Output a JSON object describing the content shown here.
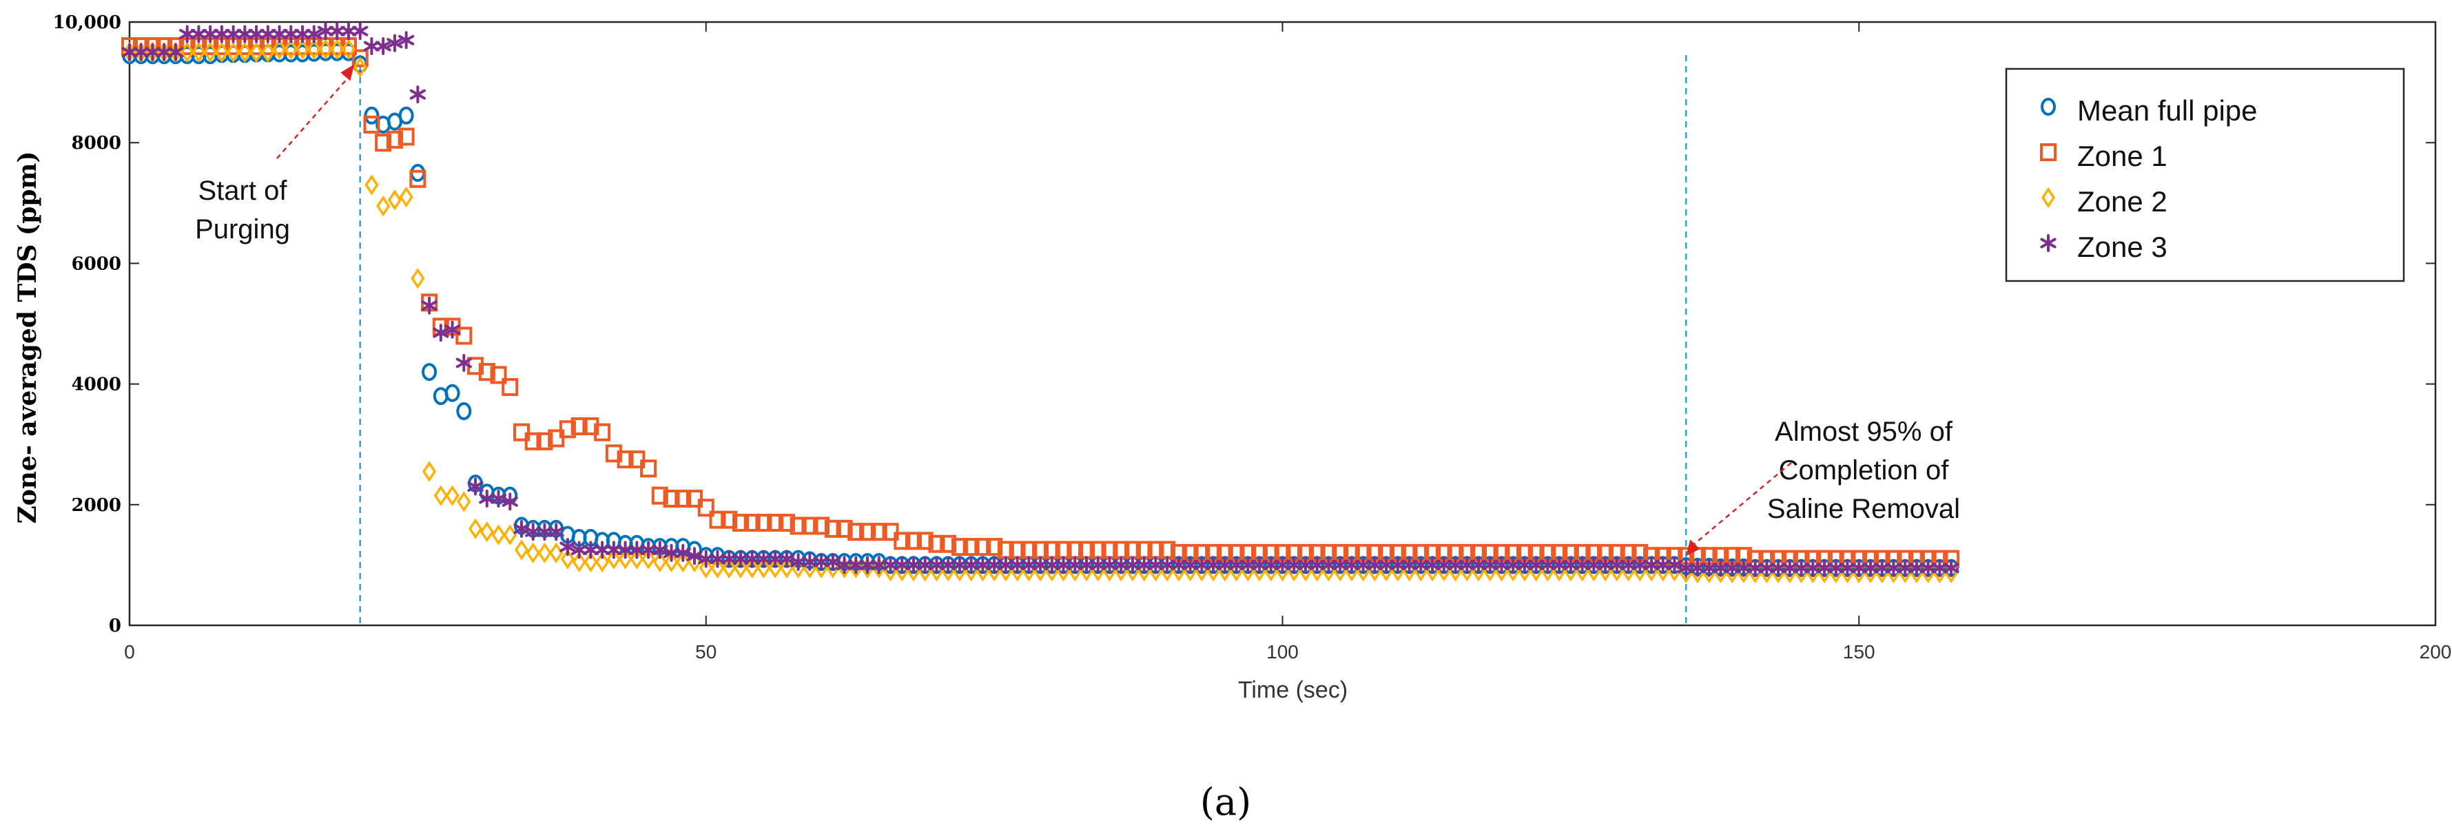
{
  "chart_data": {
    "type": "scatter",
    "title": "",
    "xlabel": "Time (sec)",
    "ylabel": "Zone- averaged TDS (ppm)",
    "xlim": [
      0,
      200
    ],
    "ylim": [
      0,
      10000
    ],
    "xticks": [
      0,
      50,
      100,
      150,
      200
    ],
    "xtick_labels": [
      "0",
      "50",
      "100",
      "150",
      "200"
    ],
    "yticks": [
      0,
      2000,
      4000,
      6000,
      8000,
      10000
    ],
    "ytick_labels": [
      "0",
      "2000",
      "4000",
      "6000",
      "8000",
      "10,000"
    ],
    "grid": false,
    "legend_position": "top-right",
    "vlines": [
      20,
      135
    ],
    "annotations": [
      {
        "lines": [
          "Start of",
          "Purging"
        ],
        "x": 19.5,
        "y": 9300
      },
      {
        "lines": [
          "Almost 95% of",
          "Completion of",
          "Saline Removal"
        ],
        "x": 135,
        "y": 1150
      }
    ],
    "caption": "(a)",
    "x": [
      0,
      1,
      2,
      3,
      4,
      5,
      6,
      7,
      8,
      9,
      10,
      11,
      12,
      13,
      14,
      15,
      16,
      17,
      18,
      19,
      20,
      21,
      22,
      23,
      24,
      25,
      26,
      27,
      28,
      29,
      30,
      31,
      32,
      33,
      34,
      35,
      36,
      37,
      38,
      39,
      40,
      41,
      42,
      43,
      44,
      45,
      46,
      47,
      48,
      49,
      50,
      51,
      52,
      53,
      54,
      55,
      56,
      57,
      58,
      59,
      60,
      61,
      62,
      63,
      64,
      65,
      66,
      67,
      68,
      69,
      70,
      71,
      72,
      73,
      74,
      75,
      76,
      77,
      78,
      79,
      80,
      81,
      82,
      83,
      84,
      85,
      86,
      87,
      88,
      89,
      90,
      91,
      92,
      93,
      94,
      95,
      96,
      97,
      98,
      99,
      100,
      101,
      102,
      103,
      104,
      105,
      106,
      107,
      108,
      109,
      110,
      111,
      112,
      113,
      114,
      115,
      116,
      117,
      118,
      119,
      120,
      121,
      122,
      123,
      124,
      125,
      126,
      127,
      128,
      129,
      130,
      131,
      132,
      133,
      134,
      135,
      136,
      137,
      138,
      139,
      140,
      141,
      142,
      143,
      144,
      145,
      146,
      147,
      148,
      149,
      150,
      151,
      152,
      153,
      154,
      155,
      156,
      157,
      158
    ],
    "series": [
      {
        "name": "Mean full pipe",
        "marker": "circle",
        "color": "#0072BD",
        "values": [
          9450,
          9450,
          9450,
          9450,
          9450,
          9450,
          9450,
          9450,
          9470,
          9470,
          9470,
          9480,
          9480,
          9480,
          9480,
          9480,
          9490,
          9500,
          9500,
          9500,
          9300,
          8450,
          8300,
          8350,
          8450,
          7500,
          4200,
          3800,
          3850,
          3550,
          2350,
          2200,
          2150,
          2150,
          1650,
          1600,
          1600,
          1600,
          1500,
          1450,
          1450,
          1400,
          1400,
          1350,
          1350,
          1300,
          1300,
          1300,
          1300,
          1250,
          1150,
          1150,
          1100,
          1100,
          1100,
          1100,
          1100,
          1100,
          1100,
          1080,
          1050,
          1050,
          1050,
          1050,
          1050,
          1050,
          1000,
          1000,
          1000,
          1000,
          1000,
          1000,
          1000,
          1000,
          1000,
          1000,
          1000,
          1000,
          1000,
          1000,
          1000,
          1000,
          1000,
          1000,
          1000,
          1000,
          1000,
          1000,
          1000,
          1000,
          1000,
          1000,
          1000,
          1000,
          1000,
          1000,
          1000,
          1000,
          1000,
          1000,
          1000,
          1000,
          1000,
          1000,
          1000,
          1000,
          1000,
          1000,
          1000,
          1000,
          1000,
          1000,
          1000,
          1000,
          1000,
          1000,
          1000,
          1000,
          1000,
          1000,
          1000,
          1000,
          1000,
          1000,
          1000,
          1000,
          1000,
          1000,
          1000,
          1000,
          1000,
          1000,
          1000,
          1000,
          1000,
          980,
          970,
          970,
          960,
          960,
          960,
          950,
          950,
          950,
          950,
          950,
          950,
          950,
          950,
          950,
          950,
          950,
          950,
          950,
          950,
          950,
          950,
          950,
          950
        ]
      },
      {
        "name": "Zone 1",
        "marker": "square",
        "color": "#EE5A24",
        "values": [
          9600,
          9600,
          9600,
          9600,
          9600,
          9600,
          9600,
          9600,
          9600,
          9600,
          9600,
          9600,
          9600,
          9600,
          9600,
          9600,
          9600,
          9600,
          9600,
          9600,
          9400,
          8300,
          8000,
          8050,
          8100,
          7400,
          5350,
          4950,
          4950,
          4800,
          4300,
          4200,
          4150,
          3950,
          3200,
          3050,
          3050,
          3100,
          3250,
          3300,
          3300,
          3200,
          2850,
          2750,
          2750,
          2600,
          2150,
          2100,
          2100,
          2100,
          1950,
          1750,
          1750,
          1700,
          1700,
          1700,
          1700,
          1700,
          1650,
          1650,
          1650,
          1600,
          1600,
          1550,
          1550,
          1550,
          1550,
          1400,
          1400,
          1400,
          1350,
          1350,
          1300,
          1300,
          1300,
          1300,
          1250,
          1250,
          1250,
          1250,
          1250,
          1250,
          1250,
          1250,
          1250,
          1250,
          1250,
          1250,
          1250,
          1250,
          1250,
          1200,
          1200,
          1200,
          1200,
          1200,
          1200,
          1200,
          1200,
          1200,
          1200,
          1200,
          1200,
          1200,
          1200,
          1200,
          1200,
          1200,
          1200,
          1200,
          1200,
          1200,
          1200,
          1200,
          1200,
          1200,
          1200,
          1200,
          1200,
          1200,
          1200,
          1200,
          1200,
          1200,
          1200,
          1200,
          1200,
          1200,
          1200,
          1200,
          1200,
          1200,
          1150,
          1150,
          1150,
          1150,
          1150,
          1150,
          1150,
          1150,
          1150,
          1100,
          1100,
          1100,
          1100,
          1100,
          1100,
          1100,
          1100,
          1100,
          1100,
          1100,
          1100,
          1100,
          1100,
          1100,
          1100,
          1100,
          1100
        ]
      },
      {
        "name": "Zone 2",
        "marker": "diamond",
        "color": "#FFB000",
        "values": [
          9500,
          9500,
          9500,
          9500,
          9500,
          9500,
          9500,
          9500,
          9500,
          9500,
          9500,
          9500,
          9500,
          9550,
          9550,
          9550,
          9550,
          9550,
          9550,
          9550,
          9250,
          7300,
          6950,
          7050,
          7100,
          5750,
          2550,
          2150,
          2150,
          2050,
          1600,
          1550,
          1500,
          1500,
          1250,
          1200,
          1200,
          1200,
          1100,
          1050,
          1050,
          1050,
          1100,
          1100,
          1100,
          1100,
          1050,
          1050,
          1050,
          1050,
          950,
          950,
          950,
          950,
          950,
          950,
          950,
          950,
          950,
          950,
          950,
          950,
          950,
          950,
          950,
          950,
          900,
          900,
          900,
          900,
          900,
          900,
          900,
          900,
          900,
          900,
          900,
          900,
          900,
          900,
          900,
          900,
          900,
          900,
          900,
          900,
          900,
          900,
          900,
          900,
          900,
          900,
          900,
          900,
          900,
          900,
          900,
          900,
          900,
          900,
          900,
          900,
          900,
          900,
          900,
          900,
          900,
          900,
          900,
          900,
          900,
          900,
          900,
          900,
          900,
          900,
          900,
          900,
          900,
          900,
          900,
          900,
          900,
          900,
          900,
          900,
          900,
          900,
          900,
          900,
          900,
          900,
          900,
          900,
          900,
          870,
          870,
          870,
          870,
          870,
          870,
          870,
          870,
          870,
          870,
          870,
          870,
          870,
          870,
          870,
          870,
          870,
          870,
          870,
          870,
          870,
          870,
          870,
          870
        ]
      },
      {
        "name": "Zone 3",
        "marker": "asterisk",
        "color": "#7E2F8E",
        "values": [
          9500,
          9500,
          9500,
          9500,
          9500,
          9800,
          9800,
          9800,
          9800,
          9800,
          9800,
          9800,
          9800,
          9800,
          9800,
          9800,
          9800,
          9850,
          9850,
          9850,
          9850,
          9600,
          9600,
          9650,
          9700,
          8800,
          5300,
          4850,
          4900,
          4350,
          2300,
          2100,
          2100,
          2050,
          1600,
          1550,
          1550,
          1550,
          1300,
          1250,
          1250,
          1250,
          1250,
          1250,
          1250,
          1250,
          1250,
          1200,
          1200,
          1150,
          1100,
          1100,
          1100,
          1100,
          1100,
          1100,
          1100,
          1100,
          1050,
          1050,
          1050,
          1050,
          1000,
          1000,
          1000,
          1000,
          1000,
          1000,
          1000,
          1000,
          1000,
          1000,
          1000,
          1000,
          1000,
          1000,
          1000,
          1000,
          1000,
          1000,
          1000,
          1000,
          1000,
          1000,
          1000,
          1000,
          1000,
          1000,
          1000,
          1000,
          1000,
          1000,
          1000,
          1000,
          1000,
          1000,
          1000,
          1000,
          1000,
          1000,
          1000,
          1000,
          1000,
          1000,
          1000,
          1000,
          1000,
          1000,
          1000,
          1000,
          1000,
          1000,
          1000,
          1000,
          1000,
          1000,
          1000,
          1000,
          1000,
          1000,
          1000,
          1000,
          1000,
          1000,
          1000,
          1000,
          1000,
          1000,
          1000,
          1000,
          1000,
          1000,
          1000,
          1000,
          1000,
          950,
          950,
          950,
          950,
          950,
          950,
          950,
          950,
          950,
          950,
          950,
          950,
          950,
          950,
          950,
          950,
          950,
          950,
          950,
          950,
          950,
          950,
          950,
          950
        ]
      }
    ]
  }
}
